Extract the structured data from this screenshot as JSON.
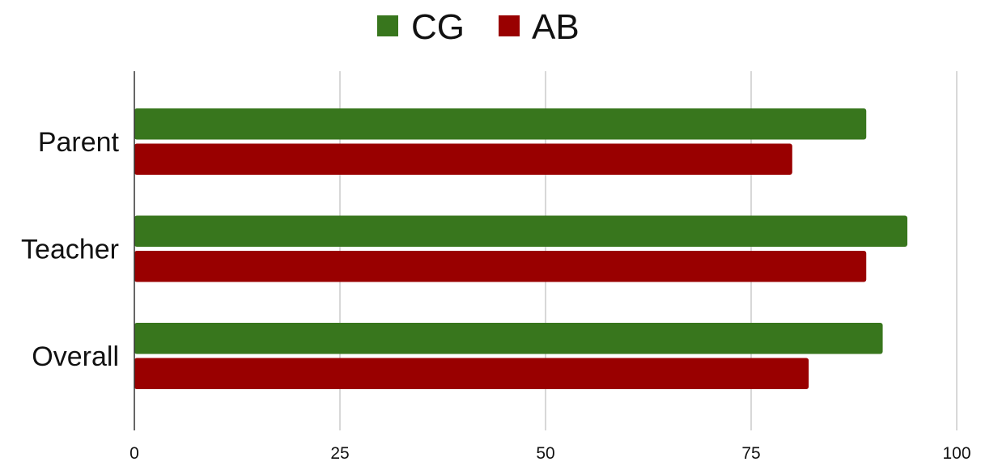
{
  "chart_data": {
    "type": "bar",
    "orientation": "horizontal",
    "categories": [
      "Parent",
      "Teacher",
      "Overall"
    ],
    "series": [
      {
        "name": "CG",
        "color": "#38761d",
        "values": [
          89,
          94,
          91
        ]
      },
      {
        "name": "AB",
        "color": "#990000",
        "values": [
          80,
          89,
          82
        ]
      }
    ],
    "xlim": [
      0,
      100
    ],
    "xticks": [
      0,
      25,
      50,
      75,
      100
    ],
    "xtick_labels": [
      "0",
      "25",
      "50",
      "75",
      "100"
    ],
    "grid": true,
    "legend": "top-center",
    "title": "",
    "xlabel": "",
    "ylabel": ""
  }
}
